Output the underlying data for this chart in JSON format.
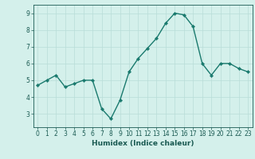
{
  "x": [
    0,
    1,
    2,
    3,
    4,
    5,
    6,
    7,
    8,
    9,
    10,
    11,
    12,
    13,
    14,
    15,
    16,
    17,
    18,
    19,
    20,
    21,
    22,
    23
  ],
  "y": [
    4.7,
    5.0,
    5.3,
    4.6,
    4.8,
    5.0,
    5.0,
    3.3,
    2.7,
    3.8,
    5.5,
    6.3,
    6.9,
    7.5,
    8.4,
    9.0,
    8.9,
    8.2,
    6.0,
    5.3,
    6.0,
    6.0,
    5.7,
    5.5
  ],
  "line_color": "#1a7a6e",
  "marker": "D",
  "markersize": 2.2,
  "linewidth": 1.0,
  "bg_color": "#d4f0eb",
  "grid_color": "#b8ddd8",
  "tick_color": "#1a5a52",
  "xlabel": "Humidex (Indice chaleur)",
  "xlabel_fontsize": 6.5,
  "tick_fontsize": 5.5,
  "xlim": [
    -0.5,
    23.5
  ],
  "ylim": [
    2.2,
    9.5
  ],
  "yticks": [
    3,
    4,
    5,
    6,
    7,
    8,
    9
  ],
  "xticks": [
    0,
    1,
    2,
    3,
    4,
    5,
    6,
    7,
    8,
    9,
    10,
    11,
    12,
    13,
    14,
    15,
    16,
    17,
    18,
    19,
    20,
    21,
    22,
    23
  ]
}
